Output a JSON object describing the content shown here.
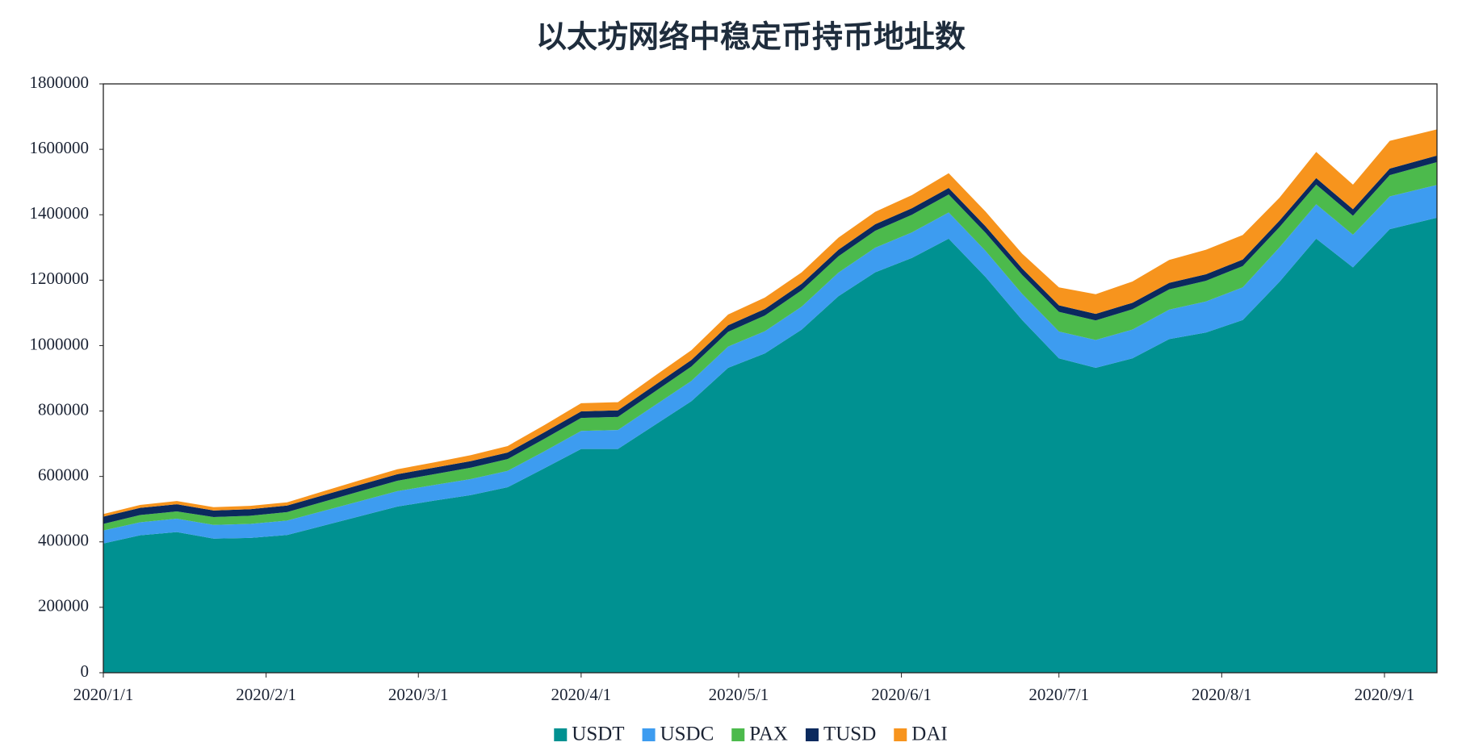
{
  "chart_data": {
    "type": "stacked-area",
    "title": "以太坊网络中稳定币持币地址数",
    "x": [
      "2020/1/1",
      "2020/1/8",
      "2020/1/15",
      "2020/1/22",
      "2020/1/29",
      "2020/2/5",
      "2020/2/12",
      "2020/2/19",
      "2020/2/26",
      "2020/3/4",
      "2020/3/11",
      "2020/3/18",
      "2020/3/25",
      "2020/4/1",
      "2020/4/8",
      "2020/4/15",
      "2020/4/22",
      "2020/4/29",
      "2020/5/6",
      "2020/5/13",
      "2020/5/20",
      "2020/5/27",
      "2020/6/3",
      "2020/6/10",
      "2020/6/17",
      "2020/6/24",
      "2020/7/1",
      "2020/7/8",
      "2020/7/15",
      "2020/7/22",
      "2020/7/29",
      "2020/8/5",
      "2020/8/12",
      "2020/8/19",
      "2020/8/26",
      "2020/9/2",
      "2020/9/11"
    ],
    "series": [
      {
        "name": "USDT",
        "color": "#009191",
        "values": [
          395000,
          420000,
          430000,
          410000,
          412000,
          421000,
          450000,
          479000,
          508000,
          526000,
          543000,
          567000,
          625000,
          684000,
          684000,
          757000,
          830000,
          932000,
          976000,
          1049000,
          1151000,
          1224000,
          1268000,
          1327000,
          1210000,
          1078000,
          961000,
          932000,
          961000,
          1020000,
          1040000,
          1078000,
          1195000,
          1327000,
          1239000,
          1356000,
          1391000
        ]
      },
      {
        "name": "USDC",
        "color": "#3d9cf0",
        "values": [
          40000,
          40000,
          41000,
          42000,
          43000,
          44000,
          45000,
          46000,
          47000,
          48000,
          49000,
          50000,
          52000,
          55000,
          58000,
          60000,
          62000,
          65000,
          68000,
          70000,
          72000,
          75000,
          78000,
          80000,
          80000,
          80000,
          82000,
          85000,
          88000,
          90000,
          95000,
          100000,
          105000,
          105000,
          100000,
          100000,
          100000
        ]
      },
      {
        "name": "PAX",
        "color": "#4cba4c",
        "values": [
          20000,
          22000,
          22000,
          24000,
          25000,
          26000,
          28000,
          30000,
          32000,
          33000,
          35000,
          36000,
          38000,
          40000,
          40000,
          42000,
          44000,
          45000,
          48000,
          50000,
          50000,
          52000,
          54000,
          55000,
          55000,
          58000,
          60000,
          60000,
          62000,
          62000,
          63000,
          65000,
          62000,
          60000,
          58000,
          65000,
          70000
        ]
      },
      {
        "name": "TUSD",
        "color": "#0b2a5e",
        "values": [
          22000,
          22000,
          22000,
          20000,
          20000,
          20000,
          20000,
          20000,
          20000,
          20000,
          20000,
          20000,
          20000,
          20000,
          20000,
          20000,
          20000,
          20000,
          20000,
          20000,
          20000,
          20000,
          20000,
          20000,
          20000,
          20000,
          20000,
          20000,
          20000,
          20000,
          20000,
          20000,
          20000,
          20000,
          20000,
          20000,
          20000
        ]
      },
      {
        "name": "DAI",
        "color": "#f7941d",
        "values": [
          8000,
          9000,
          10000,
          10000,
          10000,
          10000,
          12000,
          14000,
          15000,
          16000,
          18000,
          20000,
          22000,
          25000,
          25000,
          28000,
          30000,
          33000,
          35000,
          35000,
          37000,
          38000,
          40000,
          45000,
          45000,
          45000,
          55000,
          60000,
          65000,
          70000,
          75000,
          75000,
          70000,
          80000,
          75000,
          85000,
          80000
        ]
      }
    ],
    "xlim": [
      "2020/1/1",
      "2020/9/11"
    ],
    "xticks": [
      "2020/1/1",
      "2020/2/1",
      "2020/3/1",
      "2020/4/1",
      "2020/5/1",
      "2020/6/1",
      "2020/7/1",
      "2020/8/1",
      "2020/9/1"
    ],
    "ylim": [
      0,
      1800000
    ],
    "yticks": [
      0,
      200000,
      400000,
      600000,
      800000,
      1000000,
      1200000,
      1400000,
      1600000,
      1800000
    ],
    "legend": "bottom"
  }
}
